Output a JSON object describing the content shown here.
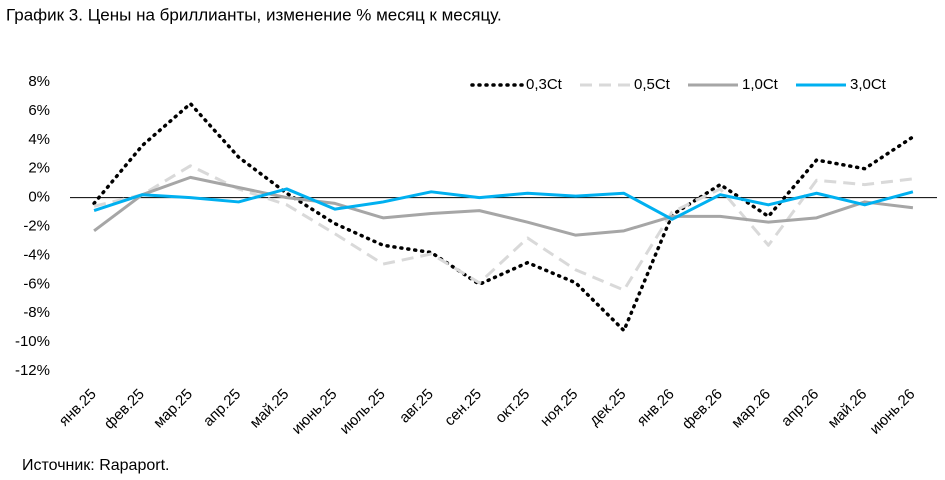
{
  "chart_data": {
    "type": "line",
    "title": "График 3. Цены на бриллианты, изменение % месяц к месяцу.",
    "source": "Источник: Rapaport.",
    "categories": [
      "янв.25",
      "фев.25",
      "мар.25",
      "апр.25",
      "май.25",
      "июнь.25",
      "июль.25",
      "авг.25",
      "сен.25",
      "окт.25",
      "ноя.25",
      "дек.25",
      "янв.26",
      "фев.26",
      "мар.26",
      "апр.26",
      "май.26",
      "июнь.26"
    ],
    "series": [
      {
        "name": "0,3Ct",
        "color": "#000000",
        "line_style": "dotted",
        "values": [
          -0.4,
          3.6,
          6.5,
          2.8,
          0.3,
          -1.8,
          -3.3,
          -3.8,
          -6.0,
          -4.5,
          -5.9,
          -9.2,
          -1.2,
          0.9,
          -1.3,
          2.6,
          2.0,
          4.2
        ]
      },
      {
        "name": "0,5Ct",
        "color": "#d9d9d9",
        "line_style": "dashed",
        "values": [
          -0.6,
          0.2,
          2.2,
          0.6,
          -0.5,
          -2.5,
          -4.6,
          -3.9,
          -5.9,
          -2.8,
          -5.0,
          -6.4,
          -1.0,
          0.6,
          -3.3,
          1.2,
          0.9,
          1.3
        ]
      },
      {
        "name": "1,0Ct",
        "color": "#a6a6a6",
        "line_style": "solid",
        "values": [
          -2.3,
          0.2,
          1.4,
          0.7,
          0.0,
          -0.4,
          -1.4,
          -1.1,
          -0.9,
          -1.7,
          -2.6,
          -2.3,
          -1.3,
          -1.3,
          -1.7,
          -1.4,
          -0.3,
          -0.7
        ]
      },
      {
        "name": "3,0Ct",
        "color": "#00b0f0",
        "line_style": "solid",
        "values": [
          -0.9,
          0.2,
          0.0,
          -0.3,
          0.6,
          -0.8,
          -0.3,
          0.4,
          0.0,
          0.3,
          0.1,
          0.3,
          -1.5,
          0.2,
          -0.5,
          0.3,
          -0.5,
          0.4
        ]
      }
    ],
    "ylim": [
      -12,
      8
    ],
    "yticks": [
      {
        "value": 8,
        "label": "8%"
      },
      {
        "value": 6,
        "label": "6%"
      },
      {
        "value": 4,
        "label": "4%"
      },
      {
        "value": 2,
        "label": "2%"
      },
      {
        "value": 0,
        "label": "0%"
      },
      {
        "value": -2,
        "label": "-2%"
      },
      {
        "value": -4,
        "label": "-4%"
      },
      {
        "value": -6,
        "label": "-6%"
      },
      {
        "value": -8,
        "label": "-8%"
      },
      {
        "value": -10,
        "label": "-10%"
      },
      {
        "value": -12,
        "label": "-12%"
      }
    ],
    "grid": false,
    "legend": "top-right"
  }
}
